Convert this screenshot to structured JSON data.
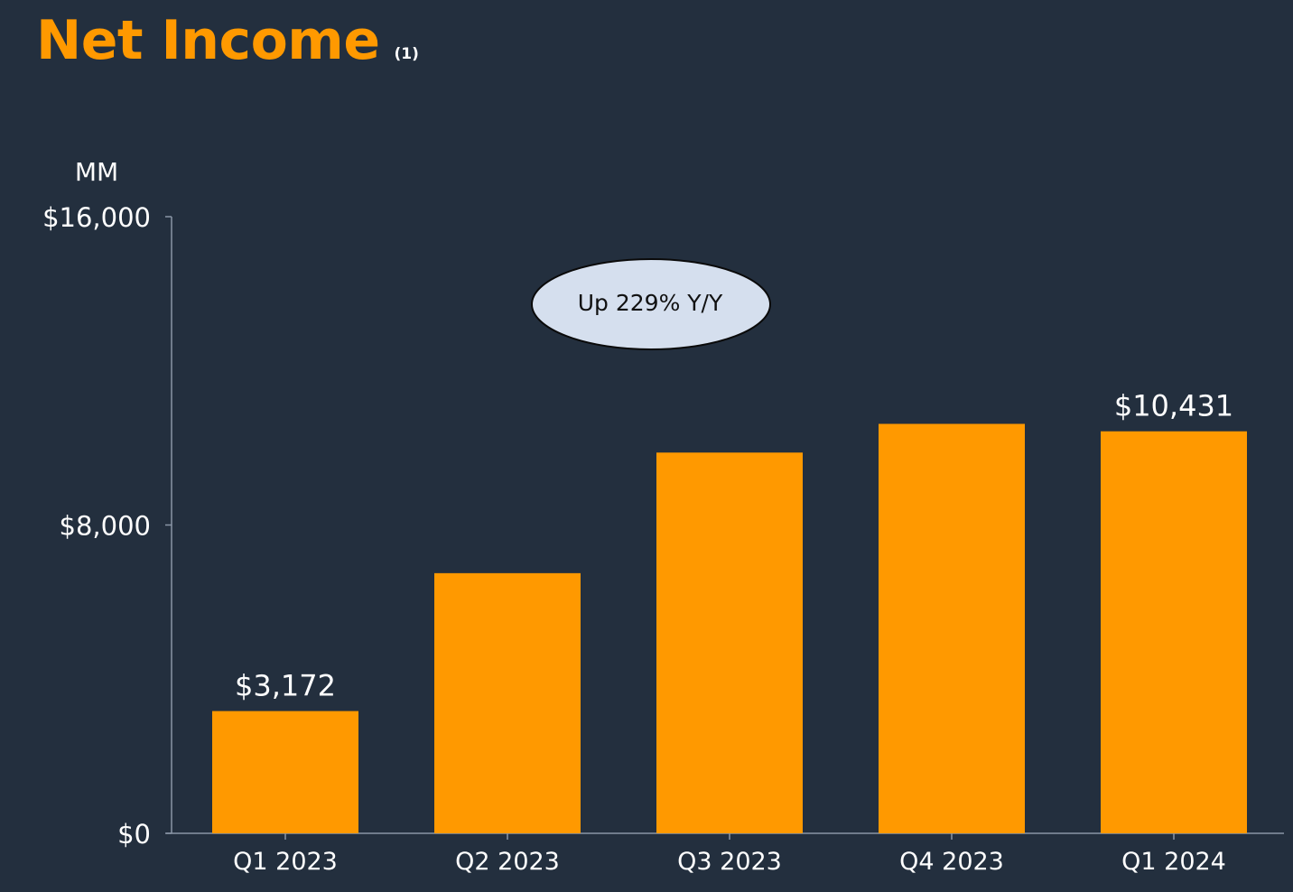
{
  "title": "Net Income",
  "title_note": "(1)",
  "colors": {
    "background": "#232F3E",
    "accent": "#FF9900",
    "text": "#FFFFFF",
    "axis": "#8A96A6",
    "callout_fill": "#D5DFEE",
    "callout_text": "#111111"
  },
  "chart_data": {
    "type": "bar",
    "title": "Net Income",
    "unit_label": "MM",
    "categories": [
      "Q1 2023",
      "Q2 2023",
      "Q3 2023",
      "Q4 2023",
      "Q1 2024"
    ],
    "values": [
      3172,
      6750,
      9879,
      10624,
      10431
    ],
    "data_labels": [
      "$3,172",
      "",
      "",
      "",
      "$10,431"
    ],
    "ylim": [
      0,
      16000
    ],
    "yticks": [
      {
        "value": 0,
        "label": "$0"
      },
      {
        "value": 8000,
        "label": "$8,000"
      },
      {
        "value": 16000,
        "label": "$16,000"
      }
    ],
    "grid": false,
    "legend": "none",
    "annotation": "Up 229% Y/Y"
  }
}
